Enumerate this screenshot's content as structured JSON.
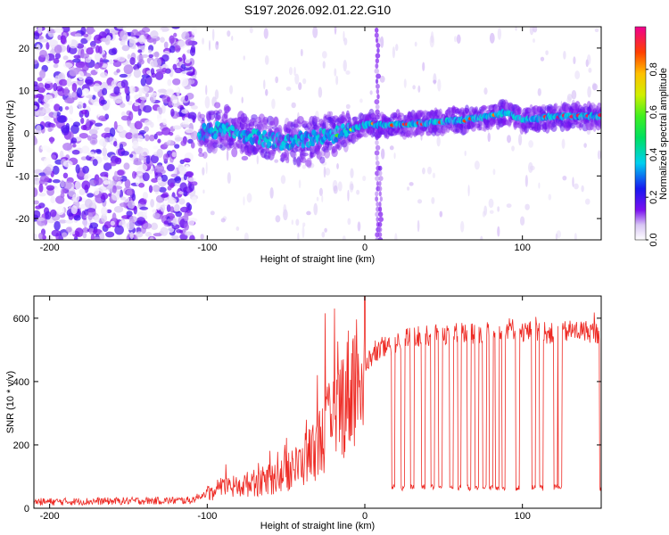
{
  "title": "S197.2026.092.01.22.G10",
  "chart_data": [
    {
      "type": "heatmap",
      "title": "S197.2026.092.01.22.G10",
      "xlabel": "Height of straight line (km)",
      "ylabel": "Frequency (Hz)",
      "xlim": [
        -210,
        150
      ],
      "ylim": [
        -25,
        25
      ],
      "xticks": [
        -200,
        -100,
        0,
        100
      ],
      "yticks": [
        -20,
        -10,
        0,
        10,
        20
      ],
      "colorbar": {
        "label": "Normalized spectral amplitude",
        "range": [
          0,
          1
        ],
        "ticks": [
          0.0,
          0.2,
          0.4,
          0.6,
          0.8
        ]
      },
      "signal_track": {
        "x": [
          -105,
          -90,
          -70,
          -50,
          -30,
          -15,
          0,
          10,
          20,
          40,
          60,
          80,
          90,
          100,
          120,
          150
        ],
        "frequency": [
          0,
          1,
          -1,
          -2,
          -1,
          0,
          2,
          2,
          2,
          2.5,
          3,
          4,
          5,
          3,
          4,
          4
        ],
        "amplitude": [
          0.35,
          0.35,
          0.35,
          0.35,
          0.45,
          0.6,
          0.75,
          0.85,
          0.9,
          0.95,
          0.9,
          0.85,
          0.8,
          0.9,
          0.95,
          0.95
        ]
      },
      "noise_region": {
        "x": [
          -210,
          -108
        ],
        "frequency": [
          -25,
          25
        ],
        "amplitude": [
          0,
          0.2
        ]
      },
      "vertical_streaks": [
        {
          "x": 8,
          "frequency": [
            -25,
            25
          ]
        },
        {
          "x": 10,
          "frequency": [
            -25,
            -8
          ]
        }
      ]
    },
    {
      "type": "line",
      "xlabel": "Height of straight line (km)",
      "ylabel": "SNR (10 * v/v)",
      "xlim": [
        -210,
        150
      ],
      "ylim": [
        0,
        670
      ],
      "xticks": [
        -200,
        -100,
        0,
        100
      ],
      "yticks": [
        0,
        200,
        400,
        600
      ],
      "series": [
        {
          "name": "SNR",
          "color": "#ee2a24",
          "x": [
            -210,
            -110,
            -100,
            -90,
            -80,
            -70,
            -60,
            -50,
            -40,
            -30,
            -20,
            -10,
            -5,
            0,
            10,
            20,
            30,
            40,
            50,
            60,
            70,
            80,
            90,
            100,
            110,
            120,
            130,
            140,
            150
          ],
          "values": [
            20,
            25,
            50,
            60,
            70,
            80,
            90,
            110,
            140,
            200,
            280,
            380,
            420,
            460,
            500,
            520,
            540,
            545,
            550,
            555,
            550,
            560,
            570,
            560,
            555,
            550,
            560,
            560,
            550
          ],
          "dropout_level": 65,
          "dropouts_x": [
            18,
            24,
            30,
            37,
            43,
            48,
            55,
            60,
            66,
            71,
            76,
            80,
            84,
            88,
            97,
            107,
            112,
            121,
            124,
            150
          ]
        }
      ]
    }
  ]
}
